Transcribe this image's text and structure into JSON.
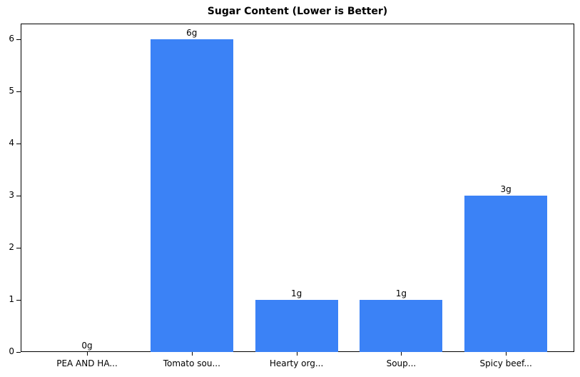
{
  "chart_data": {
    "type": "bar",
    "title": "Sugar Content (Lower is Better)",
    "xlabel": "",
    "ylabel": "",
    "categories": [
      "PEA AND HA...",
      "Tomato sou...",
      "Hearty org...",
      "Soup...",
      "Spicy beef..."
    ],
    "values": [
      0,
      6,
      1,
      1,
      3
    ],
    "data_labels": [
      "0g",
      "6g",
      "1g",
      "1g",
      "3g"
    ],
    "ylim": [
      0,
      6.3
    ],
    "yticks": [
      0,
      1,
      2,
      3,
      4,
      5,
      6
    ],
    "grid": false,
    "legend": null,
    "bar_color": "#3b82f6"
  }
}
